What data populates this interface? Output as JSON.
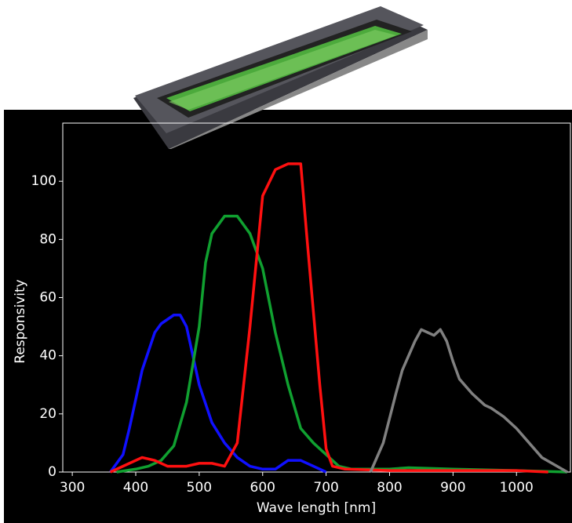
{
  "chart_data": {
    "type": "line",
    "x_label": "Wave length [nm]",
    "y_label": "Responsivity",
    "xlim": [
      285,
      1085
    ],
    "ylim": [
      0,
      120
    ],
    "xticks": [
      300,
      400,
      500,
      600,
      700,
      800,
      900,
      1000
    ],
    "yticks": [
      0,
      20,
      40,
      60,
      80,
      100
    ],
    "series": [
      {
        "name": "Blue",
        "color": "#1010ff",
        "x": [
          360,
          380,
          390,
          400,
          410,
          430,
          440,
          460,
          470,
          480,
          490,
          500,
          520,
          540,
          560,
          580,
          600,
          620,
          640,
          660,
          680,
          700
        ],
        "values": [
          0,
          6,
          15,
          25,
          35,
          48,
          51,
          54,
          54,
          50,
          40,
          30,
          17,
          10,
          5,
          2,
          1,
          1,
          4,
          4,
          2,
          0
        ]
      },
      {
        "name": "Green",
        "color": "#10a030",
        "x": [
          370,
          400,
          420,
          440,
          460,
          480,
          500,
          510,
          520,
          540,
          560,
          580,
          600,
          620,
          640,
          660,
          680,
          700,
          720,
          740,
          800,
          830,
          900,
          1000,
          1080
        ],
        "values": [
          0,
          1,
          2,
          4,
          9,
          24,
          50,
          72,
          82,
          88,
          88,
          82,
          70,
          48,
          30,
          15,
          10,
          6,
          2,
          1,
          1,
          1.5,
          1,
          0.5,
          0
        ]
      },
      {
        "name": "Red",
        "color": "#ff1010",
        "x": [
          360,
          390,
          410,
          430,
          450,
          480,
          500,
          520,
          540,
          560,
          580,
          600,
          620,
          640,
          660,
          670,
          690,
          700,
          710,
          730,
          800,
          1000,
          1050
        ],
        "values": [
          0,
          3,
          5,
          4,
          2,
          2,
          3,
          3,
          2,
          10,
          50,
          95,
          104,
          106,
          106,
          80,
          30,
          8,
          2,
          1,
          0.5,
          0.5,
          0
        ]
      },
      {
        "name": "NIR",
        "color": "#808080",
        "x": [
          770,
          790,
          810,
          820,
          840,
          850,
          860,
          870,
          880,
          890,
          900,
          910,
          930,
          950,
          960,
          980,
          1000,
          1020,
          1040,
          1080
        ],
        "values": [
          0,
          10,
          27,
          35,
          45,
          49,
          48,
          47,
          49,
          45,
          38,
          32,
          27,
          23,
          22,
          19,
          15,
          10,
          5,
          0
        ]
      }
    ]
  }
}
